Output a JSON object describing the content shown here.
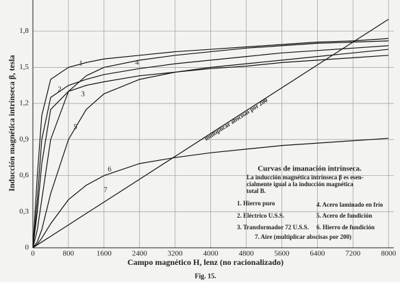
{
  "chart_data": {
    "type": "line",
    "x_label": "Campo magnético H, lenz (no racionalizado)",
    "y_label": "Inducción magnética intrínseca β, tesla",
    "caption": "Fig. 15.",
    "legend_title": "Curvas de imanación intrínseca.",
    "legend_note": [
      "La inducción magnética intrínseca β es esen-",
      "cialmente igual a la inducción magnética",
      "total B."
    ],
    "line_annotation": "multiplicar abscisas por 200",
    "xlim": [
      0,
      8120
    ],
    "ylim": [
      0,
      2.06
    ],
    "xticks": [
      0,
      800,
      1600,
      2400,
      3200,
      4000,
      4800,
      5600,
      6400,
      7200,
      8000
    ],
    "yticks": [
      0,
      {
        "value": 0.3,
        "label": "0,3"
      },
      {
        "value": 0.6,
        "label": "0,6"
      },
      {
        "value": 0.9,
        "label": "0,9"
      },
      {
        "value": 1.2,
        "label": "1,2"
      },
      {
        "value": 1.5,
        "label": "1,5"
      },
      {
        "value": 1.8,
        "label": "1,8"
      }
    ],
    "grid": true,
    "x": [
      0,
      100,
      200,
      400,
      800,
      1200,
      1600,
      2400,
      3200,
      4000,
      4800,
      5600,
      6400,
      7200,
      8000
    ],
    "series": [
      {
        "name": "1. Hierro puro",
        "tag": "1",
        "color": "#111111",
        "values": [
          0,
          0.6,
          1.1,
          1.4,
          1.5,
          1.54,
          1.57,
          1.6,
          1.63,
          1.65,
          1.67,
          1.69,
          1.71,
          1.72,
          1.74
        ]
      },
      {
        "name": "2. Eléctrico U.S.S.",
        "tag": "2",
        "color": "#111111",
        "values": [
          0,
          0.4,
          0.9,
          1.25,
          1.35,
          1.4,
          1.44,
          1.49,
          1.53,
          1.56,
          1.59,
          1.62,
          1.64,
          1.66,
          1.68
        ]
      },
      {
        "name": "3. Transformador 72 U.S.S.",
        "tag": "3",
        "color": "#111111",
        "values": [
          0,
          0.3,
          0.7,
          1.15,
          1.3,
          1.35,
          1.38,
          1.43,
          1.46,
          1.49,
          1.51,
          1.54,
          1.56,
          1.58,
          1.6
        ]
      },
      {
        "name": "4. Acero laminado en frío",
        "tag": "4",
        "color": "#111111",
        "values": [
          0,
          0.15,
          0.4,
          0.9,
          1.3,
          1.43,
          1.5,
          1.56,
          1.6,
          1.63,
          1.66,
          1.68,
          1.7,
          1.71,
          1.72
        ]
      },
      {
        "name": "5. Acero de fundición",
        "tag": "5",
        "color": "#111111",
        "values": [
          0,
          0.05,
          0.15,
          0.45,
          0.9,
          1.15,
          1.28,
          1.4,
          1.46,
          1.5,
          1.53,
          1.56,
          1.59,
          1.62,
          1.65
        ]
      },
      {
        "name": "6. Hierro de fundición",
        "tag": "6",
        "color": "#111111",
        "values": [
          0,
          0.03,
          0.08,
          0.2,
          0.4,
          0.52,
          0.6,
          0.7,
          0.75,
          0.79,
          0.82,
          0.85,
          0.87,
          0.89,
          0.91
        ]
      },
      {
        "name": "7. Aire (multiplicar abscisas por 200)",
        "tag": "7",
        "color": "#111111",
        "values": [
          0,
          0.024,
          0.048,
          0.095,
          0.19,
          0.285,
          0.38,
          0.57,
          0.76,
          0.95,
          1.14,
          1.33,
          1.52,
          1.71,
          1.9
        ]
      }
    ]
  }
}
